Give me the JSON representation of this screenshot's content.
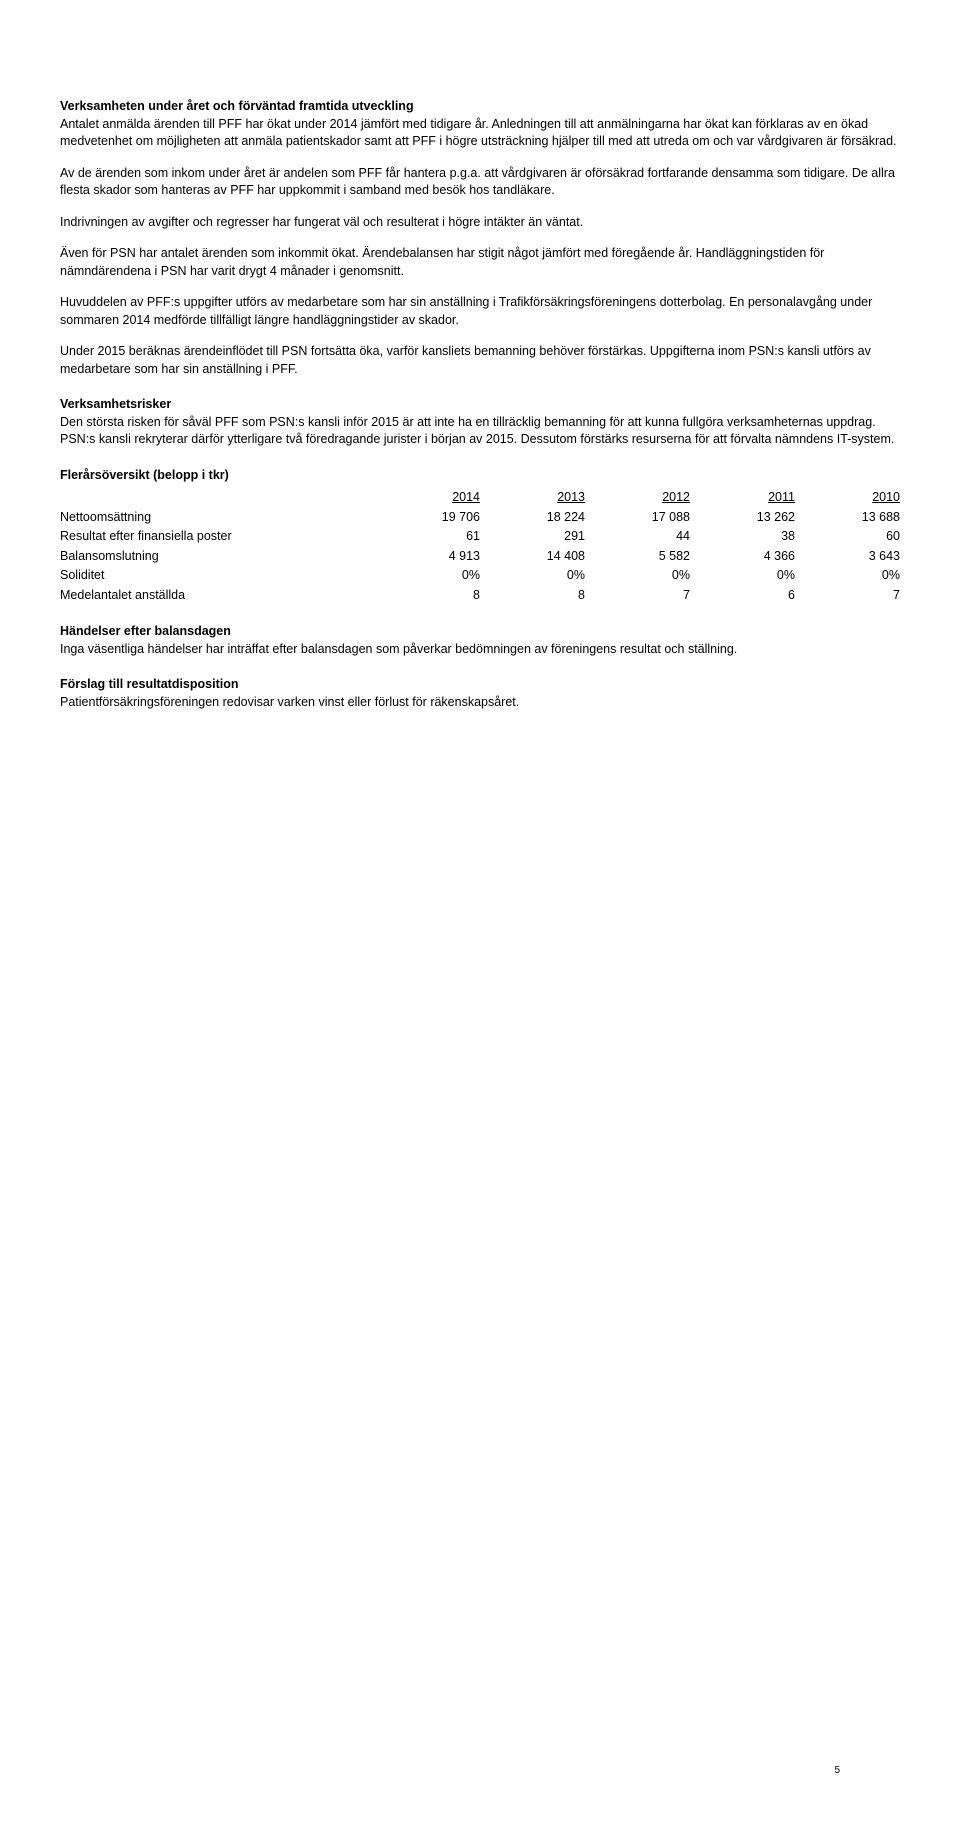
{
  "section1": {
    "heading": "Verksamheten under året och förväntad framtida utveckling",
    "p1": "Antalet anmälda ärenden till PFF har ökat under 2014 jämfört med tidigare år. Anledningen till att anmälningarna har ökat kan förklaras av en ökad medvetenhet om möjligheten att anmäla patientskador samt att PFF i högre utsträckning hjälper till med att utreda om och var vårdgivaren är försäkrad.",
    "p2": "Av de ärenden som inkom under året är andelen som PFF får hantera p.g.a. att vårdgivaren är oförsäkrad fortfarande densamma som tidigare. De allra flesta skador som hanteras av PFF har uppkommit i samband med besök hos tandläkare.",
    "p3": "Indrivningen av avgifter och regresser har fungerat väl och resulterat i högre intäkter än väntat.",
    "p4": "Även för PSN har antalet ärenden som inkommit ökat. Ärendebalansen har stigit något jämfört med föregående år. Handläggningstiden för nämndärendena i PSN har varit drygt 4 månader i genomsnitt.",
    "p5": "Huvuddelen av PFF:s uppgifter utförs av medarbetare som har sin anställning i Trafikförsäkringsföreningens dotterbolag. En personalavgång under sommaren 2014 medförde tillfälligt längre handläggningstider av skador.",
    "p6": "Under 2015 beräknas ärendeinflödet till PSN fortsätta öka, varför kansliets bemanning behöver förstärkas. Uppgifterna inom PSN:s kansli utförs av medarbetare som har sin anställning i PFF."
  },
  "section2": {
    "heading": "Verksamhetsrisker",
    "p1": "Den största risken för såväl PFF som PSN:s kansli inför 2015 är att inte ha en tillräcklig bemanning för att kunna fullgöra verksamheternas uppdrag. PSN:s kansli rekryterar därför ytterligare två föredragande jurister i början av 2015. Dessutom förstärks resurserna för att förvalta nämndens IT-system."
  },
  "table": {
    "heading": "Flerårsöversikt (belopp i tkr)",
    "years": [
      "2014",
      "2013",
      "2012",
      "2011",
      "2010"
    ],
    "rows": [
      {
        "label": "Nettoomsättning",
        "values": [
          "19 706",
          "18 224",
          "17 088",
          "13 262",
          "13 688"
        ]
      },
      {
        "label": "Resultat efter finansiella poster",
        "values": [
          "61",
          "291",
          "44",
          "38",
          "60"
        ]
      },
      {
        "label": "Balansomslutning",
        "values": [
          "4 913",
          "14 408",
          "5 582",
          "4 366",
          "3 643"
        ]
      },
      {
        "label": "Soliditet",
        "values": [
          "0%",
          "0%",
          "0%",
          "0%",
          "0%"
        ]
      },
      {
        "label": "Medelantalet anställda",
        "values": [
          "8",
          "8",
          "7",
          "6",
          "7"
        ]
      }
    ]
  },
  "section3": {
    "heading": "Händelser efter balansdagen",
    "p1": "Inga väsentliga händelser har inträffat efter balansdagen som påverkar bedömningen av föreningens resultat och ställning."
  },
  "section4": {
    "heading": "Förslag till resultatdisposition",
    "p1": "Patientförsäkringsföreningen redovisar varken vinst eller förlust för räkenskapsåret."
  },
  "pageNumber": "5"
}
